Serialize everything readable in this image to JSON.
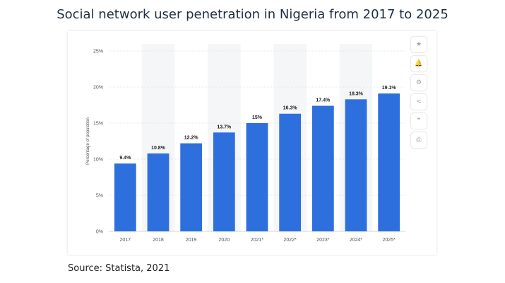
{
  "page": {
    "title": "Social network user penetration in Nigeria from 2017 to 2025",
    "source": "Source: Statista, 2021"
  },
  "toolbar": {
    "items": [
      {
        "name": "star-icon",
        "glyph": "★"
      },
      {
        "name": "bell-icon",
        "glyph": "🔔"
      },
      {
        "name": "gear-icon",
        "glyph": "⚙"
      },
      {
        "name": "share-icon",
        "glyph": "<"
      },
      {
        "name": "quote-icon",
        "glyph": "❞"
      },
      {
        "name": "print-icon",
        "glyph": "⎙"
      }
    ]
  },
  "chart_data": {
    "type": "bar",
    "title": "",
    "xlabel": "",
    "ylabel": "Percentage of population",
    "categories": [
      "2017",
      "2018",
      "2019",
      "2020",
      "2021*",
      "2022*",
      "2023*",
      "2024*",
      "2025*"
    ],
    "values": [
      9.4,
      10.8,
      12.2,
      13.7,
      15,
      16.3,
      17.4,
      18.3,
      19.1
    ],
    "value_labels": [
      "9.4%",
      "10.8%",
      "12.2%",
      "13.7%",
      "15%",
      "16.3%",
      "17.4%",
      "18.3%",
      "19.1%"
    ],
    "ylim": [
      0,
      25
    ],
    "yticks": [
      0,
      5,
      10,
      15,
      20,
      25
    ],
    "ytick_labels": [
      "0%",
      "5%",
      "10%",
      "15%",
      "20%",
      "25%"
    ],
    "grid": true,
    "bar_color": "#2e6fde",
    "alt_band_color": "#f5f6f8",
    "legend": "none"
  }
}
